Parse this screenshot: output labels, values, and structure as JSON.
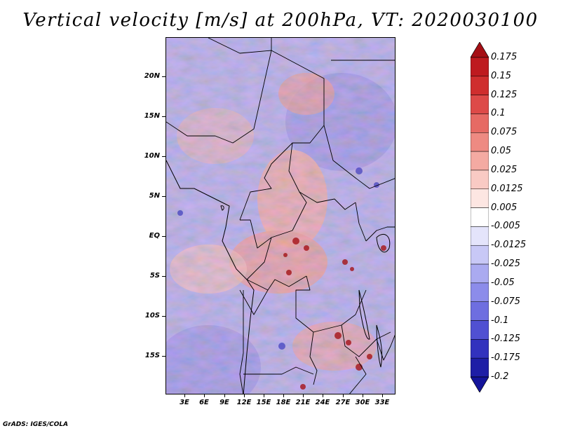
{
  "title": "Vertical velocity [m/s] at 200hPa, VT: 2020030100",
  "credit": "GrADS: IGES/COLA",
  "map": {
    "lat_labels": [
      "20N",
      "15N",
      "10N",
      "5N",
      "EQ",
      "5S",
      "10S",
      "15S"
    ],
    "lon_labels": [
      "3E",
      "6E",
      "9E",
      "12E",
      "15E",
      "18E",
      "21E",
      "24E",
      "27E",
      "30E",
      "33E"
    ]
  },
  "colorbar": {
    "labels": [
      "0.175",
      "0.15",
      "0.125",
      "0.1",
      "0.075",
      "0.05",
      "0.025",
      "0.0125",
      "0.005",
      "-0.005",
      "-0.0125",
      "-0.025",
      "-0.05",
      "-0.075",
      "-0.1",
      "-0.125",
      "-0.175",
      "-0.2"
    ],
    "colors": [
      "#a50f15",
      "#be1a1f",
      "#cf2e2e",
      "#dd4a48",
      "#e66a64",
      "#ee8a82",
      "#f4aaa2",
      "#f9cac4",
      "#fde6e2",
      "#ffffff",
      "#e4e4fb",
      "#c8c8f6",
      "#aaaaf0",
      "#8c8cea",
      "#6e6ee0",
      "#5050d2",
      "#3232be",
      "#1e1ea6",
      "#14149a"
    ]
  }
}
